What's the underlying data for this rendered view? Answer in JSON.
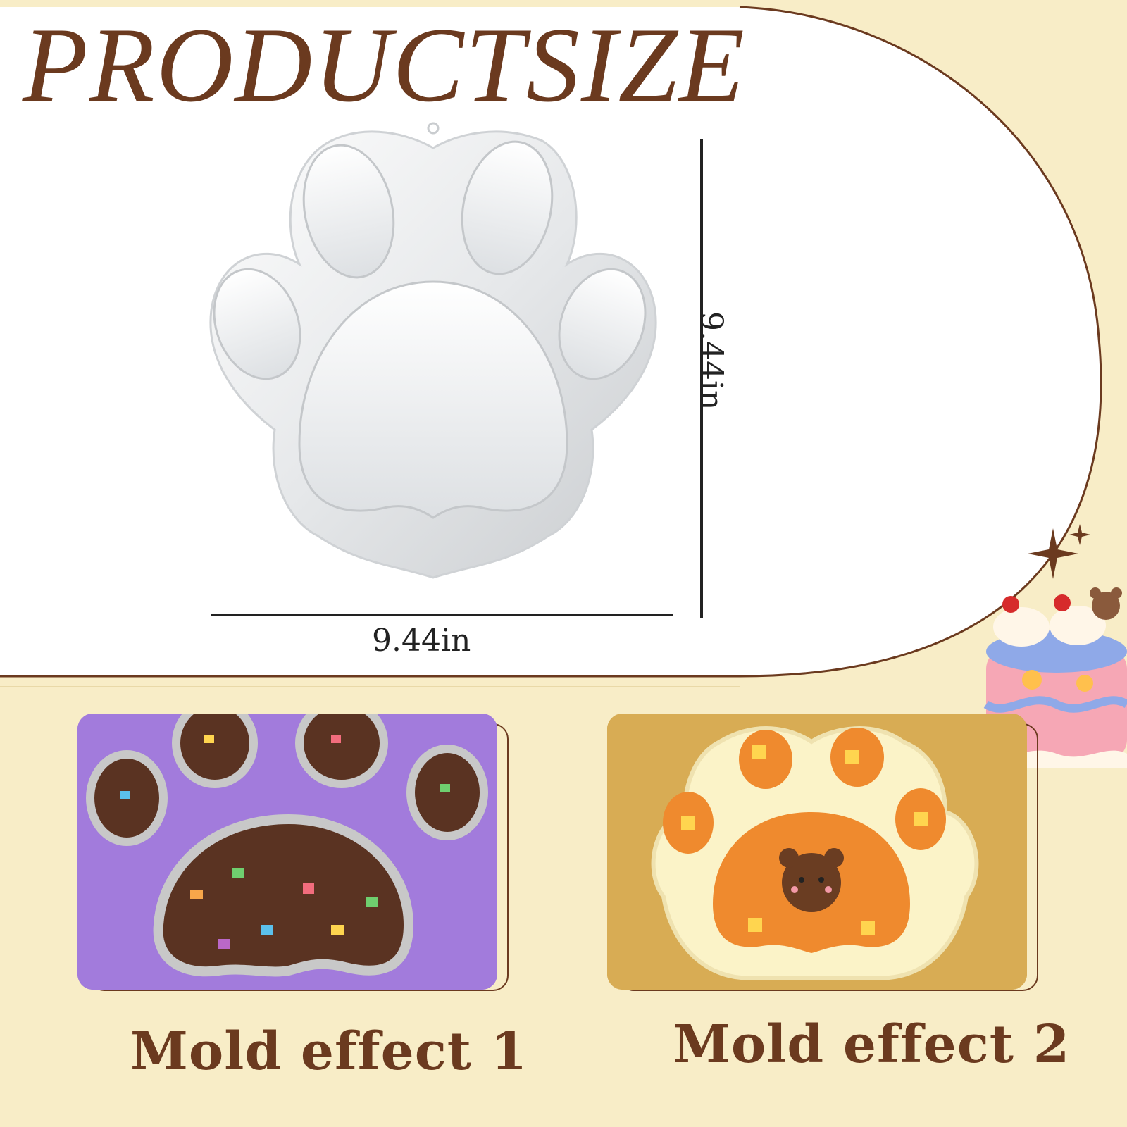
{
  "header": {
    "title": "PRODUCTSIZE"
  },
  "dimensions": {
    "width_label": "9.44in",
    "height_label": "9.44in"
  },
  "effects": [
    {
      "caption": "Mold effect 1"
    },
    {
      "caption": "Mold effect 2"
    }
  ],
  "colors": {
    "background": "#f8edc7",
    "accent_brown": "#6b3a1f",
    "panel": "#ffffff"
  }
}
